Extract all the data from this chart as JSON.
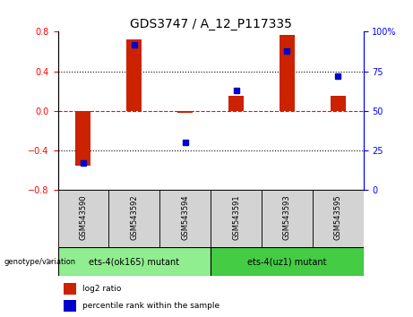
{
  "title": "GDS3747 / A_12_P117335",
  "samples": [
    "GSM543590",
    "GSM543592",
    "GSM543594",
    "GSM543591",
    "GSM543593",
    "GSM543595"
  ],
  "log2_ratio": [
    -0.55,
    0.72,
    -0.02,
    0.15,
    0.77,
    0.15
  ],
  "percentile_rank": [
    17,
    92,
    30,
    63,
    88,
    72
  ],
  "ylim_left": [
    -0.8,
    0.8
  ],
  "ylim_right": [
    0,
    100
  ],
  "yticks_left": [
    -0.8,
    -0.4,
    0,
    0.4,
    0.8
  ],
  "yticks_right": [
    0,
    25,
    50,
    75,
    100
  ],
  "bar_color": "#cc2200",
  "dot_color": "#0000cc",
  "group1_color": "#90ee90",
  "group2_color": "#44cc44",
  "group1_label": "ets-4(ok165) mutant",
  "group2_label": "ets-4(uz1) mutant",
  "genotype_label": "genotype/variation",
  "legend_bar_label": "log2 ratio",
  "legend_dot_label": "percentile rank within the sample",
  "sample_bg_color": "#d3d3d3",
  "title_fontsize": 10,
  "tick_fontsize": 7,
  "sample_fontsize": 6,
  "group_fontsize": 7,
  "legend_fontsize": 6.5,
  "bar_width": 0.3
}
